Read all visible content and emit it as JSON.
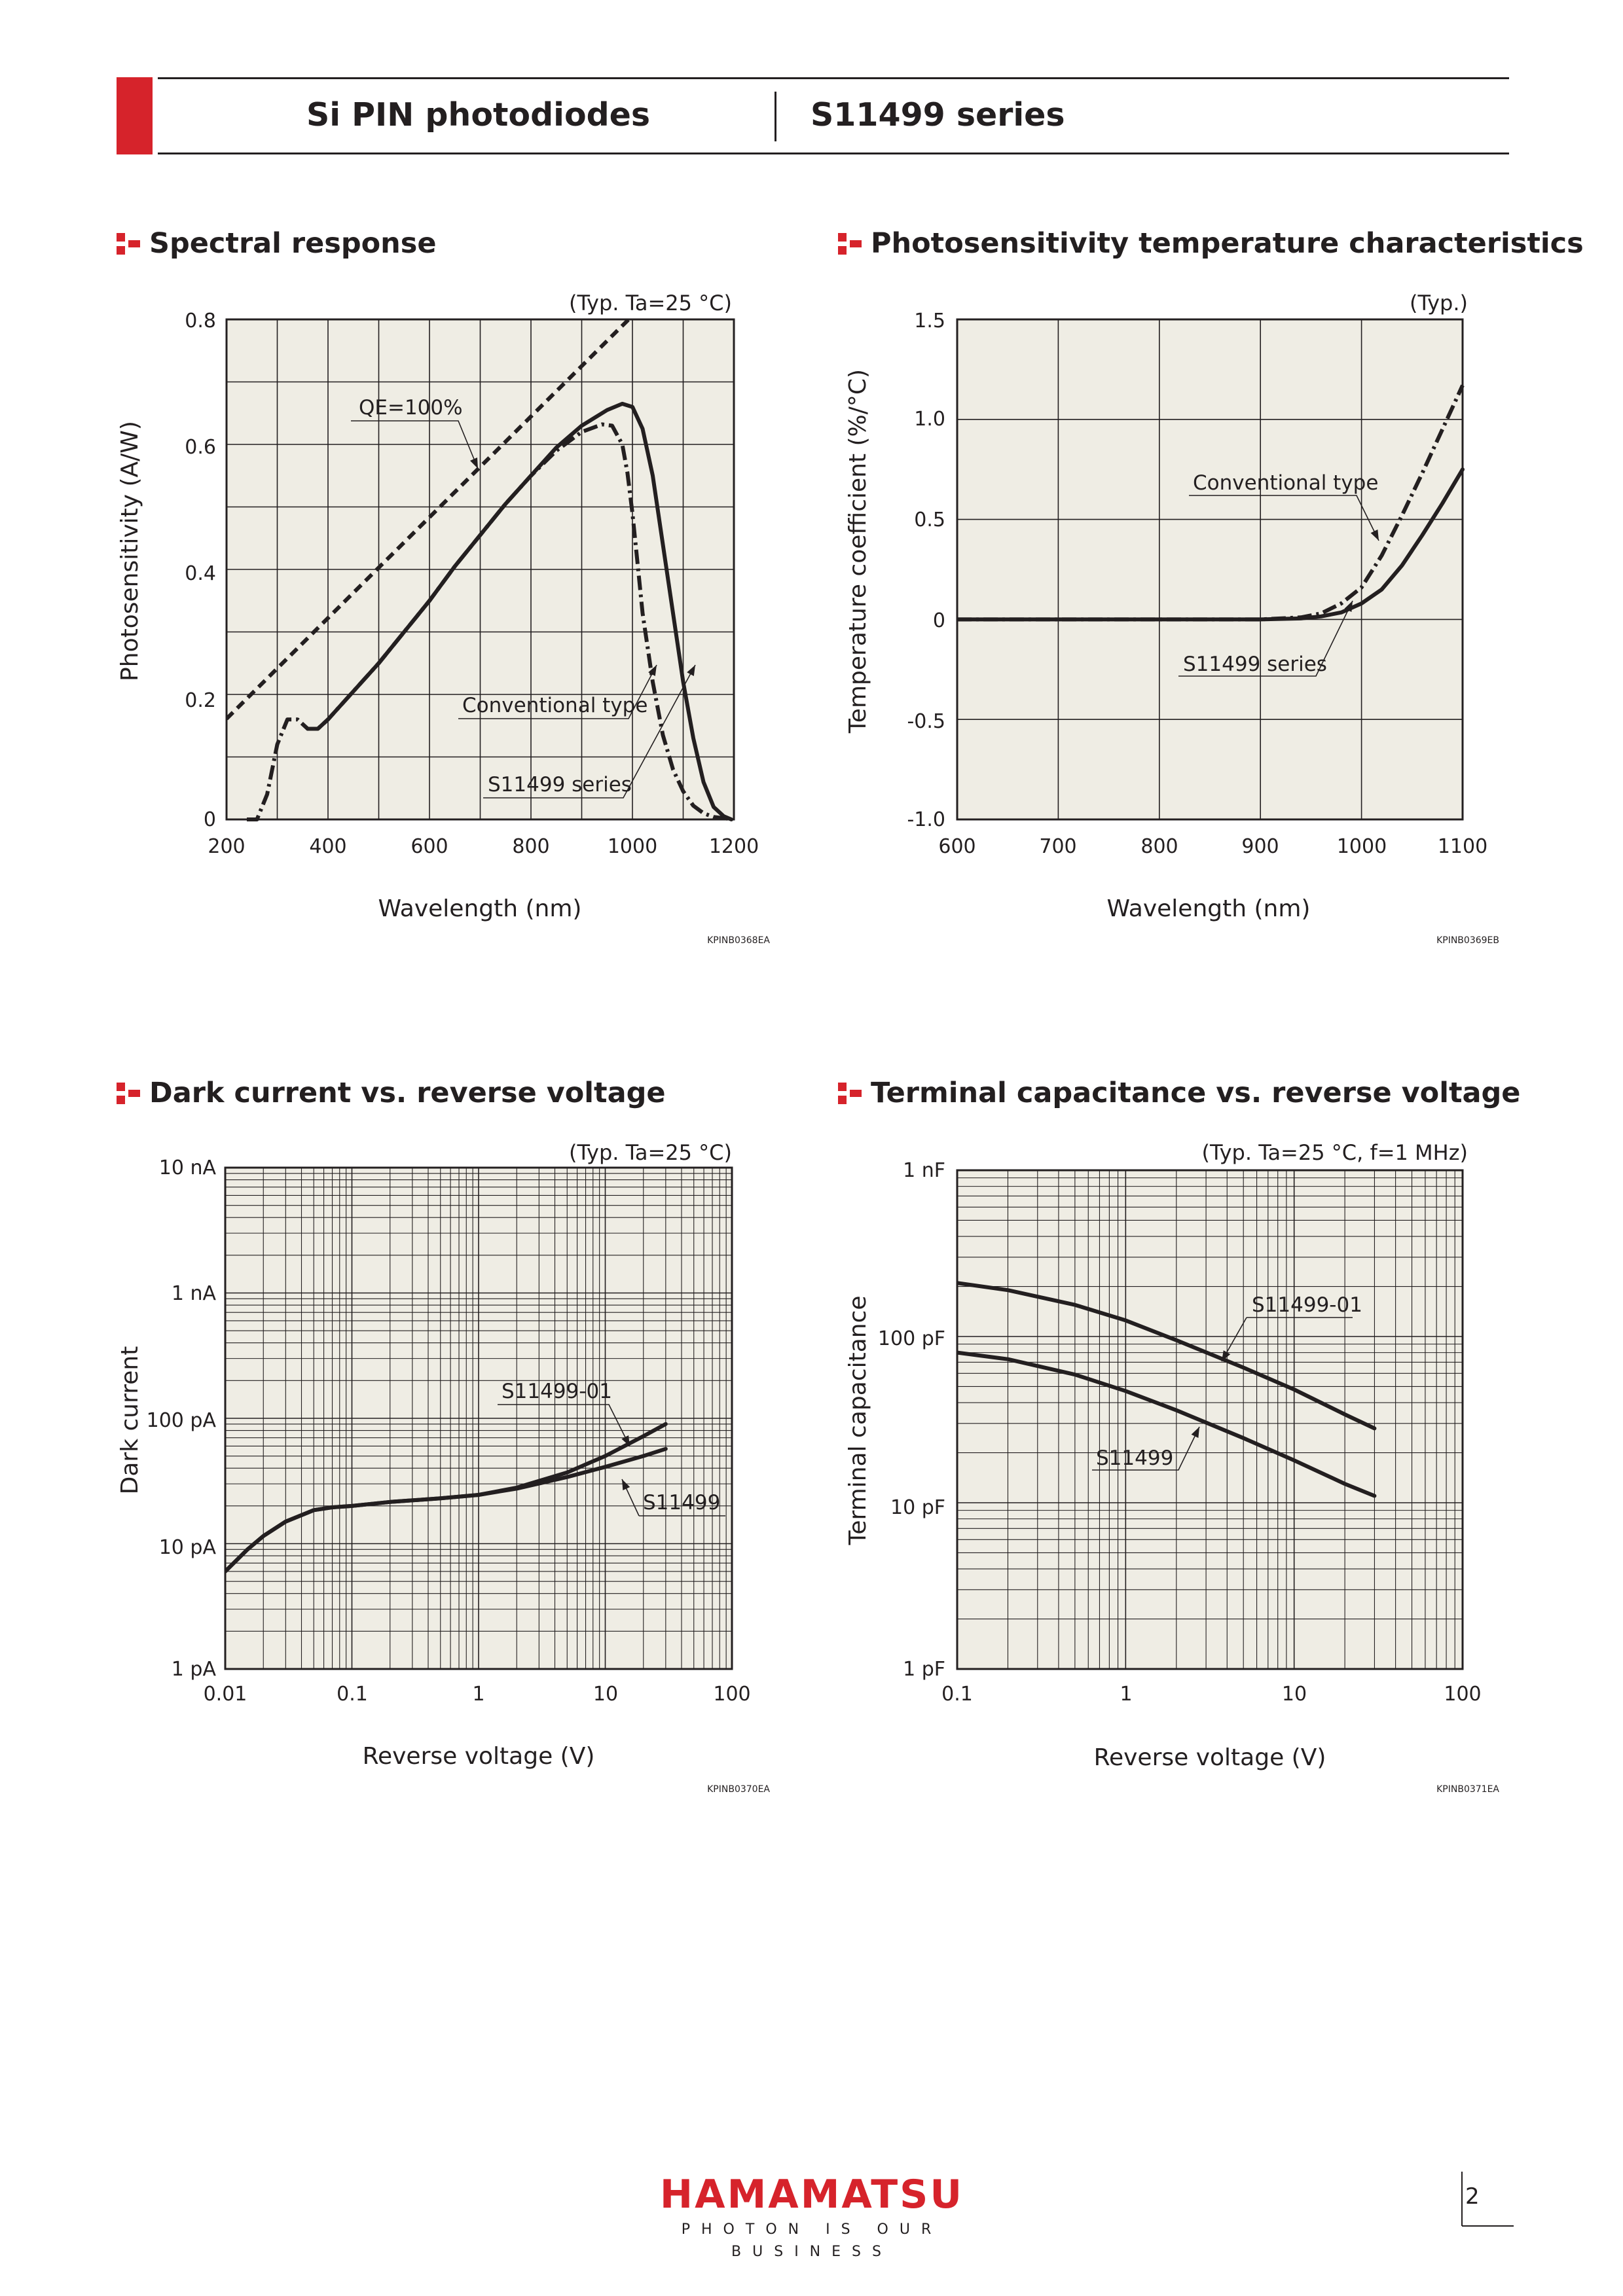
{
  "header": {
    "left_title": "Si PIN photodiodes",
    "right_title": "S11499 series"
  },
  "colors": {
    "brand_red": "#d6232b",
    "plot_bg": "#efede4",
    "ink": "#231f20"
  },
  "footer": {
    "logo_name": "HAMAMATSU",
    "logo_tagline": "PHOTON IS OUR BUSINESS",
    "page_number": "2"
  },
  "charts": [
    {
      "section_title": "Spectral response",
      "condition": "(Typ. Ta=25 °C)",
      "code": "KPINB0368EA",
      "x_ticks": [
        "200",
        "400",
        "600",
        "800",
        "1000",
        "1200"
      ],
      "y_ticks": [
        "0",
        "0.2",
        "0.4",
        "0.6",
        "0.8"
      ],
      "labels": [
        "QE=100%",
        "Conventional type",
        "S11499 series"
      ]
    },
    {
      "section_title": "Photosensitivity temperature characteristics",
      "condition": "(Typ.)",
      "code": "KPINB0369EB",
      "x_ticks": [
        "600",
        "700",
        "800",
        "900",
        "1000",
        "1100"
      ],
      "y_ticks": [
        "-1.0",
        "-0.5",
        "0",
        "0.5",
        "1.0",
        "1.5"
      ],
      "labels": [
        "Conventional type",
        "S11499 series"
      ]
    },
    {
      "section_title": "Dark current vs. reverse voltage",
      "condition": "(Typ. Ta=25 °C)",
      "code": "KPINB0370EA",
      "x_ticks": [
        "0.01",
        "0.1",
        "1",
        "10",
        "100"
      ],
      "y_ticks": [
        "1 pA",
        "10 pA",
        "100 pA",
        "1 nA",
        "10 nA"
      ],
      "labels": [
        "S11499-01",
        "S11499"
      ]
    },
    {
      "section_title": "Terminal capacitance vs. reverse voltage",
      "condition": "(Typ. Ta=25 °C, f=1 MHz)",
      "code": "KPINB0371EA",
      "x_ticks": [
        "0.1",
        "1",
        "10",
        "100"
      ],
      "y_ticks": [
        "1 pF",
        "10 pF",
        "100 pF",
        "1 nF"
      ],
      "labels": [
        "S11499-01",
        "S11499"
      ]
    }
  ],
  "chart_data": [
    {
      "type": "line",
      "title": "Spectral response",
      "xlabel": "Wavelength (nm)",
      "ylabel": "Photosensitivity (A/W)",
      "xlim": [
        200,
        1200
      ],
      "ylim": [
        0,
        0.8
      ],
      "xticks": [
        200,
        300,
        400,
        500,
        600,
        700,
        800,
        900,
        1000,
        1100,
        1200
      ],
      "yticks": [
        0,
        0.1,
        0.2,
        0.3,
        0.4,
        0.5,
        0.6,
        0.7,
        0.8
      ],
      "grid": true,
      "series": [
        {
          "name": "QE=100%",
          "style": "dashed",
          "x": [
            200,
            1000
          ],
          "y": [
            0.161,
            0.806
          ]
        },
        {
          "name": "Conventional type",
          "style": "dash-dot",
          "x": [
            240,
            260,
            280,
            300,
            320,
            340,
            360,
            380,
            400,
            450,
            500,
            550,
            600,
            650,
            700,
            750,
            800,
            850,
            900,
            940,
            960,
            980,
            990,
            1000,
            1010,
            1020,
            1040,
            1060,
            1080,
            1100,
            1120,
            1140,
            1160,
            1180,
            1190
          ],
          "y": [
            0.0,
            0.0,
            0.04,
            0.12,
            0.16,
            0.16,
            0.145,
            0.145,
            0.16,
            0.205,
            0.25,
            0.3,
            0.35,
            0.405,
            0.455,
            0.505,
            0.55,
            0.59,
            0.62,
            0.632,
            0.63,
            0.6,
            0.555,
            0.49,
            0.41,
            0.33,
            0.22,
            0.135,
            0.08,
            0.045,
            0.022,
            0.01,
            0.004,
            0.002,
            0.001
          ]
        },
        {
          "name": "S11499 series",
          "style": "solid",
          "x": [
            360,
            380,
            400,
            450,
            500,
            550,
            600,
            650,
            700,
            750,
            800,
            850,
            900,
            950,
            980,
            1000,
            1020,
            1040,
            1060,
            1080,
            1100,
            1120,
            1140,
            1160,
            1180,
            1195
          ],
          "y": [
            0.145,
            0.145,
            0.16,
            0.205,
            0.25,
            0.3,
            0.35,
            0.405,
            0.455,
            0.505,
            0.55,
            0.595,
            0.63,
            0.655,
            0.665,
            0.66,
            0.625,
            0.55,
            0.44,
            0.33,
            0.22,
            0.13,
            0.06,
            0.02,
            0.005,
            0.0
          ]
        }
      ]
    },
    {
      "type": "line",
      "title": "Photosensitivity temperature characteristics",
      "xlabel": "Wavelength (nm)",
      "ylabel": "Temperature coefficient (%/°C)",
      "xlim": [
        600,
        1100
      ],
      "ylim": [
        -1.0,
        1.5
      ],
      "xticks": [
        600,
        700,
        800,
        900,
        1000,
        1100
      ],
      "yticks": [
        -1.0,
        -0.5,
        0,
        0.5,
        1.0,
        1.5
      ],
      "grid": true,
      "series": [
        {
          "name": "Conventional type",
          "style": "dash-dot",
          "x": [
            600,
            700,
            800,
            900,
            940,
            960,
            980,
            1000,
            1020,
            1040,
            1060,
            1080,
            1100
          ],
          "y": [
            0,
            0,
            0,
            0,
            0.01,
            0.03,
            0.08,
            0.16,
            0.32,
            0.52,
            0.73,
            0.95,
            1.17
          ]
        },
        {
          "name": "S11499 series",
          "style": "solid",
          "x": [
            600,
            700,
            800,
            900,
            940,
            960,
            980,
            1000,
            1020,
            1040,
            1060,
            1080,
            1100
          ],
          "y": [
            0,
            0,
            0,
            0,
            0.005,
            0.015,
            0.035,
            0.08,
            0.15,
            0.27,
            0.42,
            0.58,
            0.75
          ]
        }
      ]
    },
    {
      "type": "line",
      "title": "Dark current vs. reverse voltage",
      "xlabel": "Reverse voltage (V)",
      "ylabel": "Dark current",
      "xscale": "log",
      "yscale": "log",
      "xlim": [
        0.01,
        100
      ],
      "ylim": [
        1e-12,
        1e-08
      ],
      "grid": true,
      "series": [
        {
          "name": "S11499-01",
          "style": "solid",
          "x": [
            0.01,
            0.015,
            0.02,
            0.03,
            0.05,
            0.07,
            0.1,
            0.2,
            0.5,
            1,
            2,
            5,
            10,
            20,
            30
          ],
          "y": [
            6e-12,
            9e-12,
            1.15e-11,
            1.5e-11,
            1.85e-11,
            1.95e-11,
            2e-11,
            2.15e-11,
            2.3e-11,
            2.45e-11,
            2.8e-11,
            3.7e-11,
            5e-11,
            7.2e-11,
            9e-11
          ]
        },
        {
          "name": "S11499",
          "style": "solid",
          "x": [
            0.01,
            0.015,
            0.02,
            0.03,
            0.05,
            0.07,
            0.1,
            0.2,
            0.5,
            1,
            2,
            5,
            10,
            20,
            30
          ],
          "y": [
            6e-12,
            9e-12,
            1.15e-11,
            1.5e-11,
            1.85e-11,
            1.95e-11,
            2e-11,
            2.15e-11,
            2.3e-11,
            2.45e-11,
            2.75e-11,
            3.4e-11,
            4.1e-11,
            5e-11,
            5.7e-11
          ]
        }
      ]
    },
    {
      "type": "line",
      "title": "Terminal capacitance vs. reverse voltage",
      "xlabel": "Reverse voltage (V)",
      "ylabel": "Terminal capacitance",
      "xscale": "log",
      "yscale": "log",
      "xlim": [
        0.1,
        100
      ],
      "ylim": [
        1e-12,
        1e-09
      ],
      "grid": true,
      "series": [
        {
          "name": "S11499-01",
          "style": "solid",
          "x": [
            0.1,
            0.2,
            0.5,
            1,
            2,
            5,
            10,
            20,
            30
          ],
          "y": [
            2.1e-10,
            1.9e-10,
            1.55e-10,
            1.25e-10,
            9.5e-11,
            6.5e-11,
            4.8e-11,
            3.4e-11,
            2.8e-11
          ]
        },
        {
          "name": "S11499",
          "style": "solid",
          "x": [
            0.1,
            0.2,
            0.5,
            1,
            2,
            5,
            10,
            20,
            30
          ],
          "y": [
            8e-11,
            7.3e-11,
            5.9e-11,
            4.7e-11,
            3.6e-11,
            2.45e-11,
            1.8e-11,
            1.3e-11,
            1.1e-11
          ]
        }
      ]
    }
  ]
}
